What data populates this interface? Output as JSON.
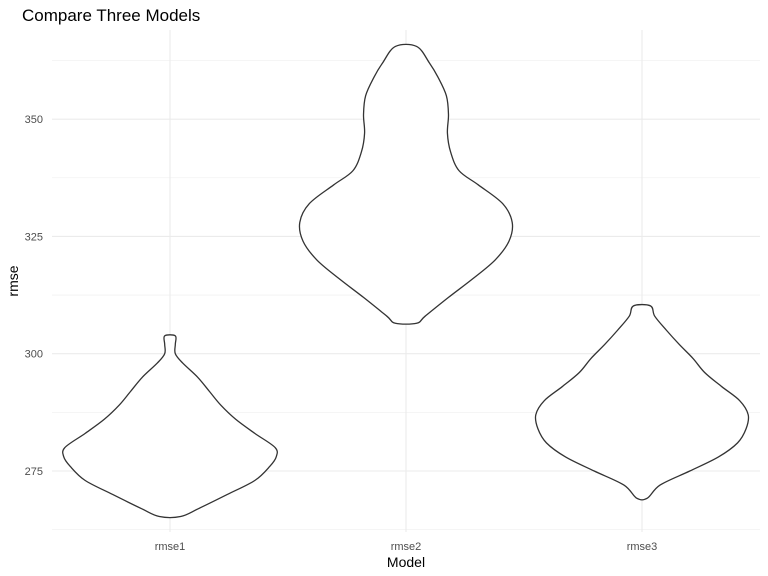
{
  "chart_data": {
    "type": "violin",
    "title": "Compare Three Models",
    "xlabel": "Model",
    "ylabel": "rmse",
    "categories": [
      "rmse1",
      "rmse2",
      "rmse3"
    ],
    "ylim": [
      262,
      369
    ],
    "yticks": [
      275,
      300,
      325,
      350
    ],
    "grid": true,
    "colors": {
      "outline": "#333333",
      "fill": "#ffffff",
      "grid": "#ebebeb"
    },
    "violins": [
      {
        "name": "rmse1",
        "profile": [
          [
            265.3,
            0.1
          ],
          [
            267,
            0.27
          ],
          [
            270,
            0.54
          ],
          [
            273,
            0.8
          ],
          [
            276,
            0.94
          ],
          [
            278,
            1.0
          ],
          [
            280,
            0.99
          ],
          [
            283,
            0.8
          ],
          [
            286,
            0.62
          ],
          [
            289,
            0.48
          ],
          [
            292,
            0.37
          ],
          [
            295,
            0.26
          ],
          [
            298,
            0.12
          ],
          [
            300,
            0.05
          ],
          [
            302,
            0.05
          ],
          [
            303.8,
            0.05
          ]
        ]
      },
      {
        "name": "rmse2",
        "profile": [
          [
            306.5,
            0.1
          ],
          [
            308,
            0.18
          ],
          [
            312,
            0.4
          ],
          [
            316,
            0.63
          ],
          [
            320,
            0.84
          ],
          [
            324,
            0.97
          ],
          [
            328,
            1.0
          ],
          [
            332,
            0.91
          ],
          [
            336,
            0.68
          ],
          [
            339,
            0.5
          ],
          [
            343,
            0.42
          ],
          [
            347,
            0.39
          ],
          [
            351,
            0.4
          ],
          [
            355,
            0.38
          ],
          [
            359,
            0.3
          ],
          [
            362,
            0.22
          ],
          [
            365.5,
            0.1
          ]
        ]
      },
      {
        "name": "rmse3",
        "profile": [
          [
            269.2,
            0.05
          ],
          [
            272,
            0.17
          ],
          [
            275,
            0.45
          ],
          [
            278,
            0.72
          ],
          [
            281,
            0.9
          ],
          [
            284,
            0.98
          ],
          [
            287,
            1.0
          ],
          [
            290,
            0.92
          ],
          [
            293,
            0.75
          ],
          [
            296,
            0.59
          ],
          [
            299,
            0.48
          ],
          [
            302,
            0.35
          ],
          [
            305,
            0.23
          ],
          [
            308,
            0.12
          ],
          [
            310.2,
            0.08
          ]
        ]
      }
    ]
  }
}
